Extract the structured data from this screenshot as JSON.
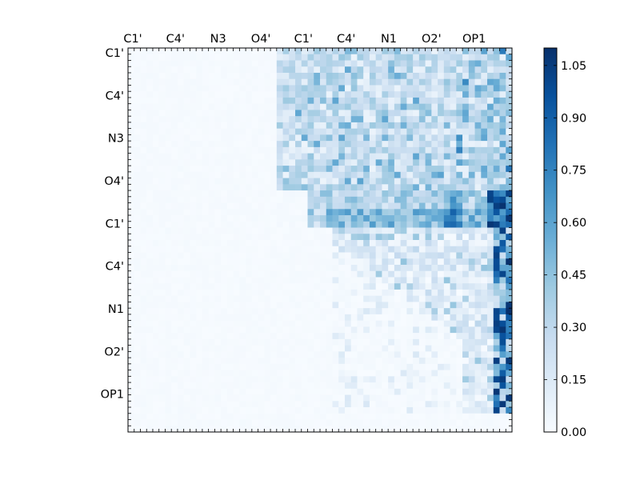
{
  "chart_data": {
    "type": "heatmap",
    "colormap": "Blues",
    "matrix_size": 62,
    "x_tick_labels": [
      "C1'",
      "C4'",
      "N3",
      "O4'",
      "C1'",
      "C4'",
      "N1",
      "O2'",
      "OP1"
    ],
    "y_tick_labels": [
      "C1'",
      "C4'",
      "N3",
      "O4'",
      "C1'",
      "C4'",
      "N1",
      "O2'",
      "OP1"
    ],
    "colorbar": {
      "min": 0.0,
      "max": 1.1,
      "ticks": [
        "0.00",
        "0.15",
        "0.30",
        "0.45",
        "0.60",
        "0.75",
        "0.90",
        "1.05"
      ]
    },
    "regions": [
      {
        "rows": [
          0,
          30
        ],
        "cols": [
          0,
          24
        ],
        "value_range": [
          0.0,
          0.05
        ],
        "description": "near-zero background"
      },
      {
        "rows": [
          0,
          22
        ],
        "cols": [
          24,
          62
        ],
        "value_range": [
          0.05,
          0.6
        ],
        "description": "moderate off-diagonal couplings"
      },
      {
        "rows": [
          24,
          28
        ],
        "cols": [
          28,
          62
        ],
        "value_range": [
          0.3,
          1.1
        ],
        "description": "strong coupling band"
      },
      {
        "rows": [
          28,
          58
        ],
        "cols": [
          30,
          62
        ],
        "value_range": [
          0.0,
          1.1
        ],
        "description": "sparse upper-triangular values, strongest near the last columns"
      }
    ]
  }
}
